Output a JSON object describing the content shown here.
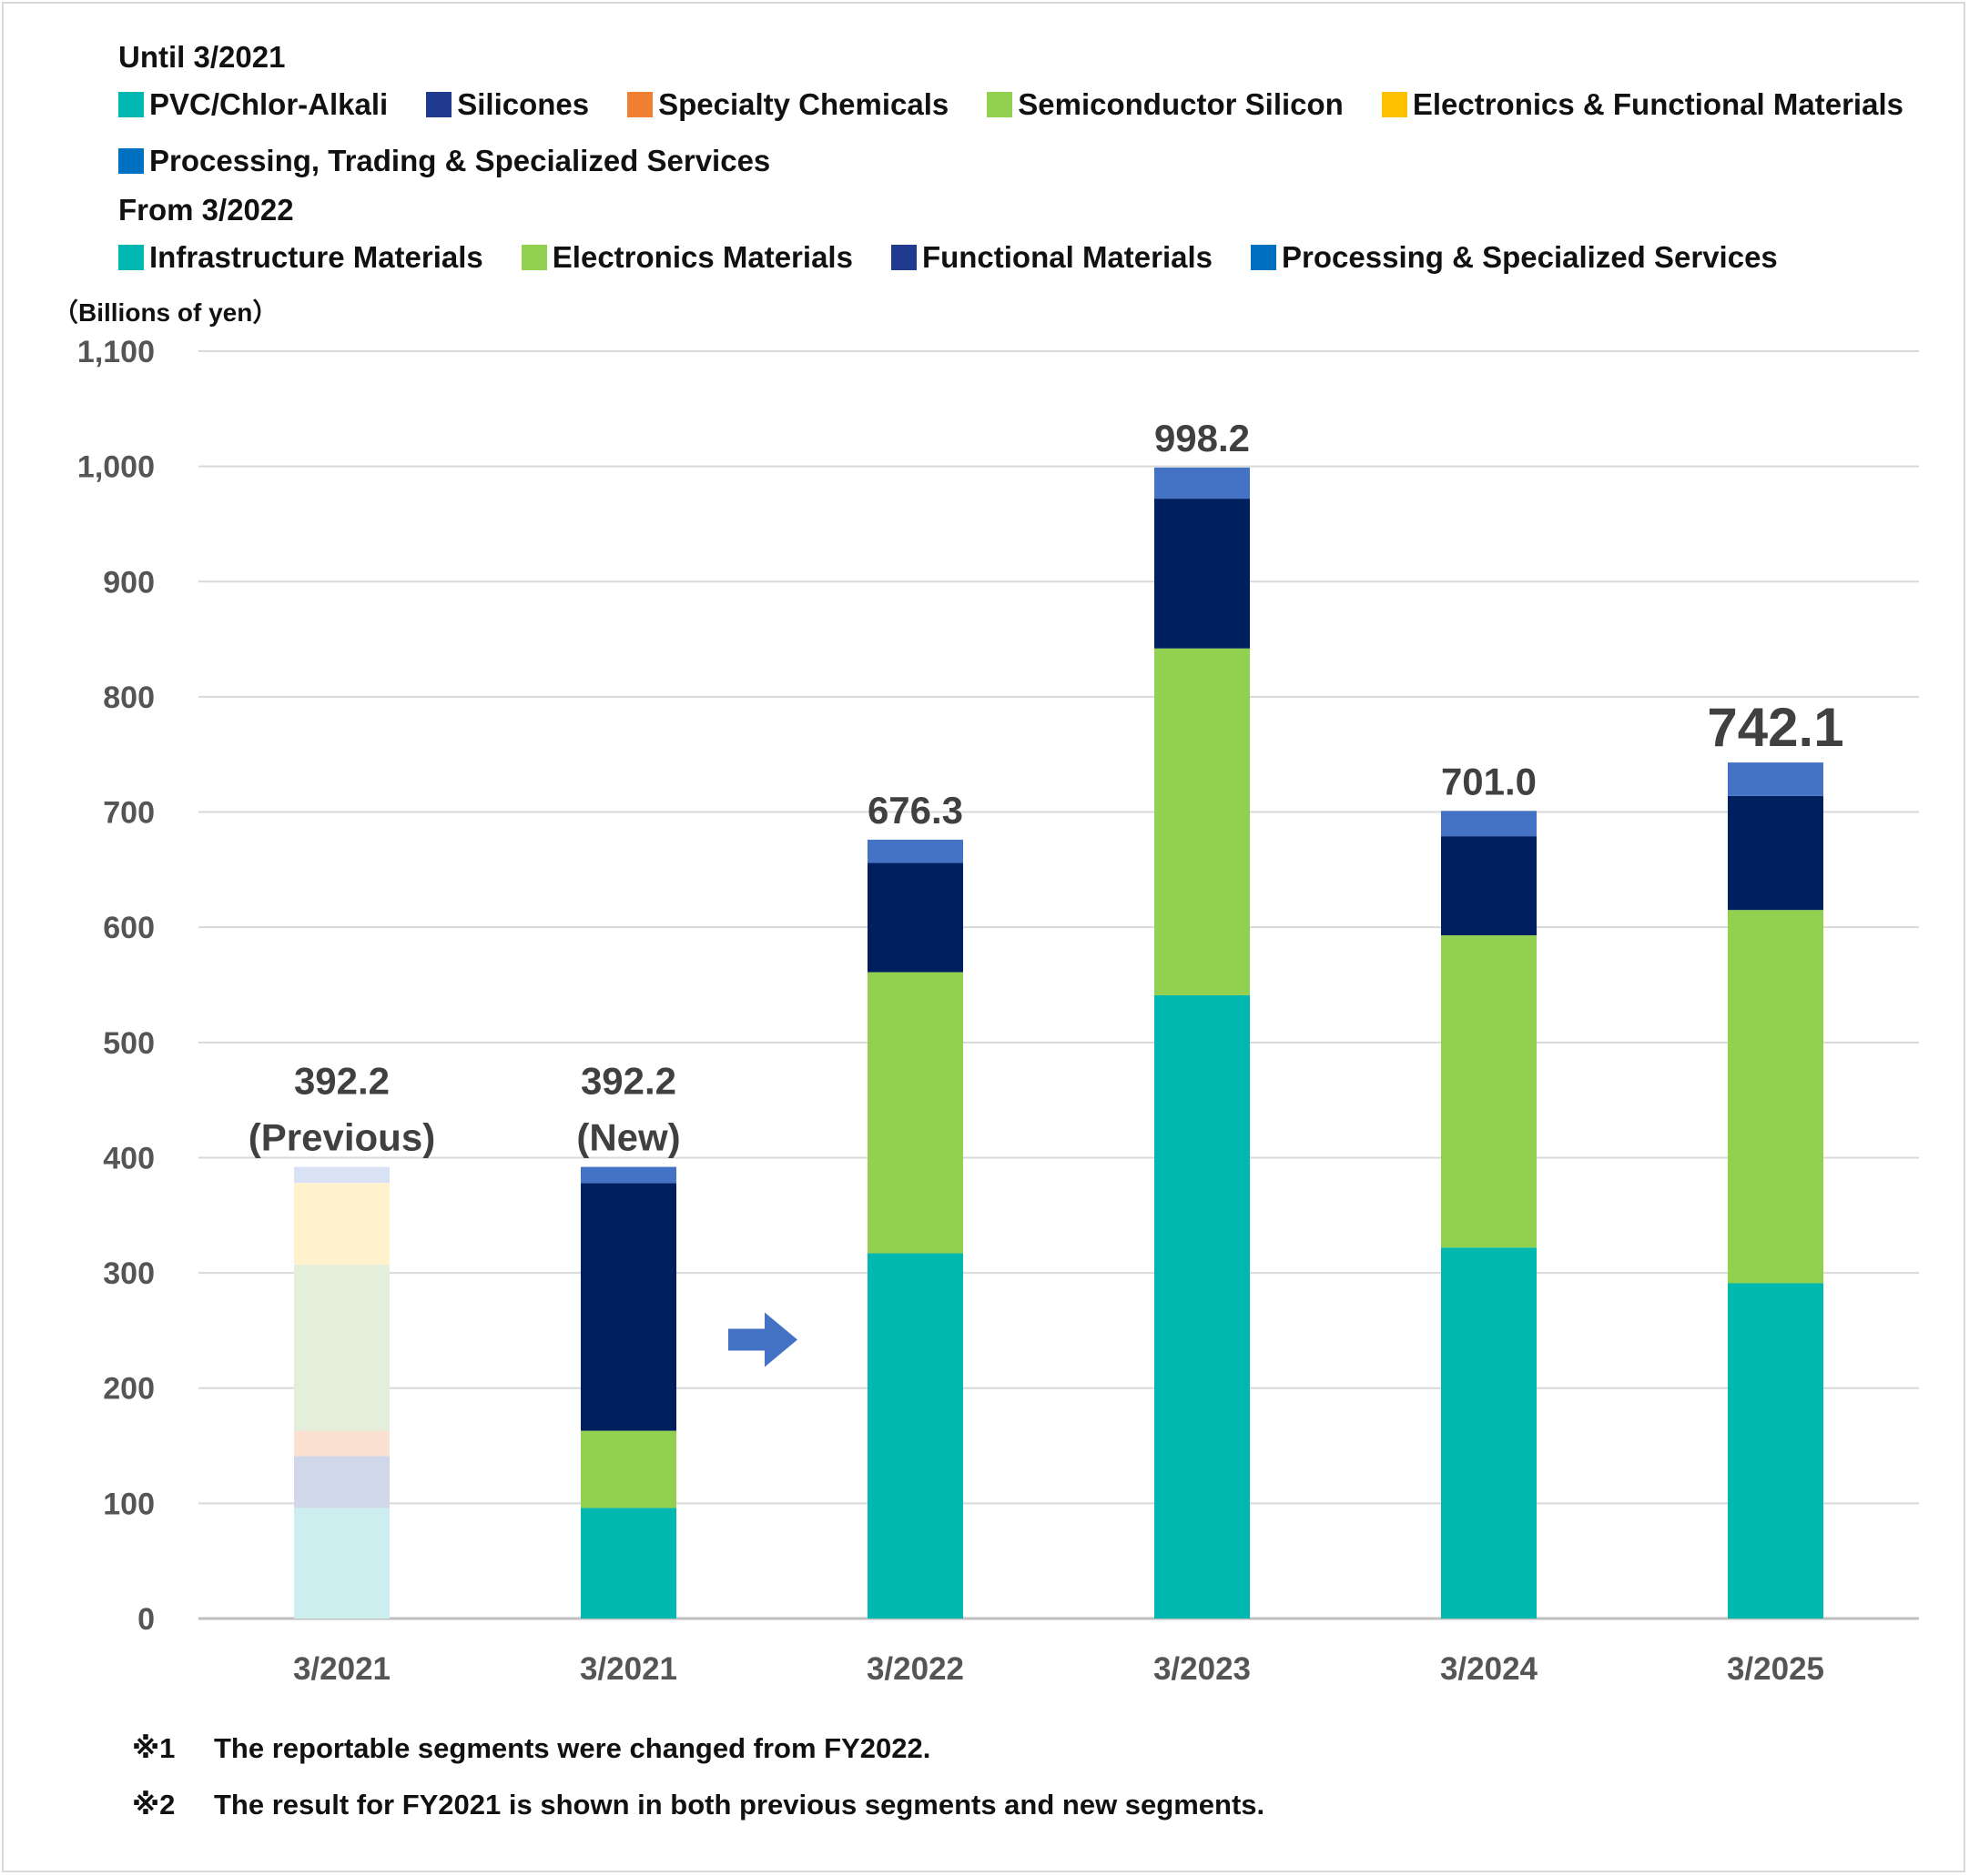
{
  "legend": {
    "until_heading": "Until 3/2021",
    "until_items": [
      {
        "label": "PVC/Chlor-Alkali",
        "color": "#00b8b0"
      },
      {
        "label": "Silicones",
        "color": "#203a8f"
      },
      {
        "label": "Specialty Chemicals",
        "color": "#f07f32"
      },
      {
        "label": "Semiconductor Silicon",
        "color": "#92d050"
      },
      {
        "label": "Electronics & Functional Materials",
        "color": "#ffc000"
      },
      {
        "label": "Processing, Trading & Specialized Services",
        "color": "#0070c0"
      }
    ],
    "from_heading": "From 3/2022",
    "from_items": [
      {
        "label": "Infrastructure Materials",
        "color": "#00b8b0"
      },
      {
        "label": "Electronics Materials",
        "color": "#92d050"
      },
      {
        "label": "Functional Materials",
        "color": "#203a8f"
      },
      {
        "label": "Processing & Specialized Services",
        "color": "#0070c0"
      }
    ]
  },
  "unit_label": "（Billions of yen）",
  "notes": [
    {
      "mark": "※1",
      "text": "The reportable segments were changed from FY2022."
    },
    {
      "mark": "※2",
      "text": "The result for FY2021 is shown in both previous segments and new segments."
    }
  ],
  "chart_data": {
    "type": "bar",
    "stacked": true,
    "ylim": [
      0,
      1100
    ],
    "yticks": [
      0,
      100,
      200,
      300,
      400,
      500,
      600,
      700,
      800,
      900,
      1000,
      1100
    ],
    "ytick_labels": [
      "0",
      "100",
      "200",
      "300",
      "400",
      "500",
      "600",
      "700",
      "800",
      "900",
      "1,000",
      "1,100"
    ],
    "grid": true,
    "categories": [
      "3/2021",
      "3/2021",
      "3/2022",
      "3/2023",
      "3/2024",
      "3/2025"
    ],
    "totals": [
      "392.2\n(Previous)",
      "392.2\n(New)",
      "676.3",
      "998.2",
      "701.0",
      "742.1"
    ],
    "bars": [
      {
        "faded": true,
        "segments": [
          {
            "series": "PVC/Chlor-Alkali",
            "value": 96,
            "color": "#cdeeee"
          },
          {
            "series": "Silicones",
            "value": 45,
            "color": "#d0d7e9"
          },
          {
            "series": "Specialty Chemicals",
            "value": 22,
            "color": "#fbe1d2"
          },
          {
            "series": "Semiconductor Silicon",
            "value": 144,
            "color": "#e3eedb"
          },
          {
            "series": "Electronics & Functional Materials",
            "value": 71,
            "color": "#fff2cc"
          },
          {
            "series": "Processing, Trading & Specialized Services",
            "value": 14,
            "color": "#d9e1f4"
          }
        ]
      },
      {
        "segments": [
          {
            "series": "Infrastructure Materials",
            "value": 96,
            "color": "#00b8b0"
          },
          {
            "series": "Electronics Materials",
            "value": 67,
            "color": "#92d050"
          },
          {
            "series": "Functional Materials",
            "value": 215,
            "color": "#001f5f"
          },
          {
            "series": "Processing & Specialized Services",
            "value": 14,
            "color": "#4472c4"
          }
        ]
      },
      {
        "segments": [
          {
            "series": "Infrastructure Materials",
            "value": 317,
            "color": "#00b8b0"
          },
          {
            "series": "Electronics Materials",
            "value": 244,
            "color": "#92d050"
          },
          {
            "series": "Functional Materials",
            "value": 95,
            "color": "#001f5f"
          },
          {
            "series": "Processing & Specialized Services",
            "value": 20,
            "color": "#4472c4"
          }
        ]
      },
      {
        "segments": [
          {
            "series": "Infrastructure Materials",
            "value": 541,
            "color": "#00b8b0"
          },
          {
            "series": "Electronics Materials",
            "value": 301,
            "color": "#92d050"
          },
          {
            "series": "Functional Materials",
            "value": 130,
            "color": "#001f5f"
          },
          {
            "series": "Processing & Specialized Services",
            "value": 27,
            "color": "#4472c4"
          }
        ]
      },
      {
        "segments": [
          {
            "series": "Infrastructure Materials",
            "value": 322,
            "color": "#00b8b0"
          },
          {
            "series": "Electronics Materials",
            "value": 271,
            "color": "#92d050"
          },
          {
            "series": "Functional Materials",
            "value": 86,
            "color": "#001f5f"
          },
          {
            "series": "Processing & Specialized Services",
            "value": 22,
            "color": "#4472c4"
          }
        ]
      },
      {
        "segments": [
          {
            "series": "Infrastructure Materials",
            "value": 291,
            "color": "#00b8b0"
          },
          {
            "series": "Electronics Materials",
            "value": 324,
            "color": "#92d050"
          },
          {
            "series": "Functional Materials",
            "value": 99,
            "color": "#001f5f"
          },
          {
            "series": "Processing & Specialized Services",
            "value": 29,
            "color": "#4472c4"
          }
        ]
      }
    ],
    "arrow_color": "#4472c4"
  }
}
